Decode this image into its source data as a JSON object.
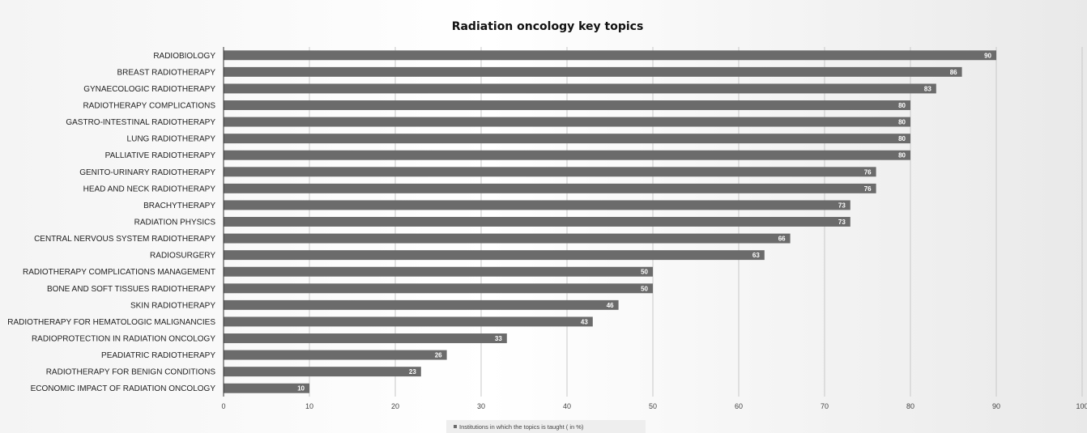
{
  "chart_data": {
    "type": "bar",
    "orientation": "horizontal",
    "title": "Radiation oncology key topics",
    "categories": [
      "RADIOBIOLOGY",
      "BREAST RADIOTHERAPY",
      "GYNAECOLOGIC RADIOTHERAPY",
      "RADIOTHERAPY COMPLICATIONS",
      "GASTRO-INTESTINAL RADIOTHERAPY",
      "LUNG RADIOTHERAPY",
      "PALLIATIVE RADIOTHERAPY",
      "GENITO-URINARY RADIOTHERAPY",
      "HEAD AND NECK RADIOTHERAPY",
      "BRACHYTHERAPY",
      "RADIATION PHYSICS",
      "CENTRAL NERVOUS SYSTEM RADIOTHERAPY",
      "RADIOSURGERY",
      "RADIOTHERAPY COMPLICATIONS MANAGEMENT",
      "BONE AND SOFT TISSUES RADIOTHERAPY",
      "SKIN RADIOTHERAPY",
      "RADIOTHERAPY FOR HEMATOLOGIC MALIGNANCIES",
      "RADIOPROTECTION IN RADIATION ONCOLOGY",
      "PEADIATRIC RADIOTHERAPY",
      "RADIOTHERAPY  FOR BENIGN CONDITIONS",
      "ECONOMIC IMPACT OF RADIATION ONCOLOGY"
    ],
    "series": [
      {
        "name": "Institutions in which the topics is taught ( in  %)",
        "values": [
          90,
          86,
          83,
          80,
          80,
          80,
          80,
          76,
          76,
          73,
          73,
          66,
          63,
          50,
          50,
          46,
          43,
          33,
          26,
          23,
          10
        ]
      }
    ],
    "xlim": [
      0,
      100
    ],
    "xticks": [
      "0",
      "10",
      "20",
      "30",
      "40",
      "50",
      "60",
      "70",
      "80",
      "90",
      "100"
    ],
    "grid": true,
    "legend_position": "bottom",
    "bar_color": "#6b6b6b"
  }
}
